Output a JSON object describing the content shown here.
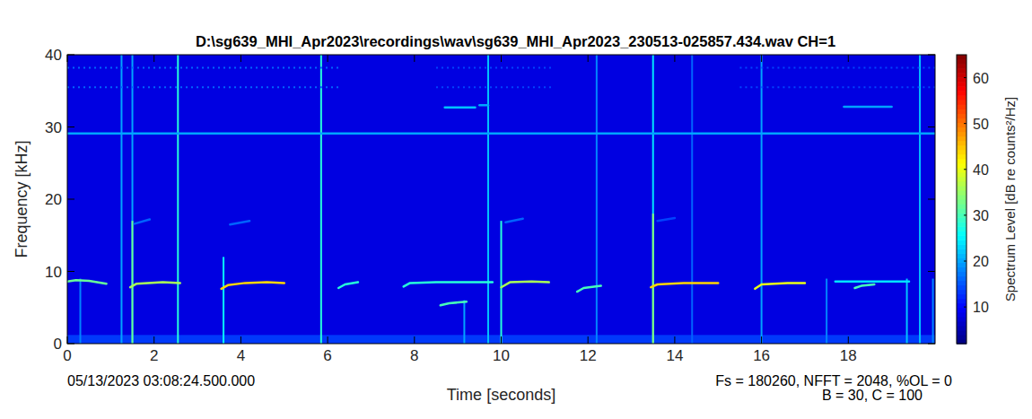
{
  "chart_data": {
    "type": "spectrogram",
    "title": "D:\\sg639_MHI_Apr2023\\recordings\\wav\\sg639_MHI_Apr2023_230513-025857.434.wav CH=1",
    "x_label": "Time [seconds]",
    "y_label": "Frequency [kHz]",
    "start_time": "05/13/2023 03:08:24.500.000",
    "parameters": [
      "Fs = 180260, NFFT = 2048, %OL = 0",
      "B = 30, C = 100"
    ],
    "xlim": [
      0,
      20
    ],
    "xticks": [
      0,
      2,
      4,
      6,
      8,
      10,
      12,
      14,
      16,
      18
    ],
    "ylim": [
      0,
      40
    ],
    "yticks": [
      0,
      10,
      20,
      30,
      40
    ],
    "colorbar_label": "Spectrum Level [dB re counts²/Hz]",
    "colorbar_lim": [
      2,
      65
    ],
    "colorbar_ticks": [
      10,
      20,
      30,
      40,
      50,
      60
    ],
    "background_level": 8,
    "bands": [
      {
        "t": [
          0,
          20
        ],
        "f": [
          0,
          1.2
        ],
        "level": 14
      }
    ],
    "tonals": [
      {
        "t": [
          0,
          20
        ],
        "f": [
          29.1,
          29.1
        ],
        "level": 20
      },
      {
        "t": [
          0,
          6.3
        ],
        "f": [
          38.2,
          38.2
        ],
        "level": 16,
        "line_style": "dotted"
      },
      {
        "t": [
          0,
          6.3
        ],
        "f": [
          35.5,
          35.5
        ],
        "level": 16,
        "line_style": "dotted"
      },
      {
        "t": [
          8.5,
          11.2
        ],
        "f": [
          38.2,
          38.2
        ],
        "level": 14,
        "line_style": "dotted"
      },
      {
        "t": [
          8.5,
          11.2
        ],
        "f": [
          35.5,
          35.5
        ],
        "level": 14,
        "line_style": "dotted"
      },
      {
        "t": [
          15.5,
          20
        ],
        "f": [
          38.2,
          38.2
        ],
        "level": 14,
        "line_style": "dotted"
      },
      {
        "t": [
          15.5,
          20
        ],
        "f": [
          35.5,
          35.5
        ],
        "level": 14,
        "line_style": "dotted"
      },
      {
        "t": [
          0,
          0.2,
          0.5,
          0.9
        ],
        "f": [
          8.6,
          8.8,
          8.7,
          8.3
        ],
        "level": 32
      },
      {
        "t": [
          1.45,
          1.6,
          2.2,
          2.6
        ],
        "f": [
          7.8,
          8.3,
          8.5,
          8.4
        ],
        "level": 36
      },
      {
        "t": [
          3.55,
          3.7,
          4.1,
          4.6,
          5.0
        ],
        "f": [
          7.6,
          8.1,
          8.4,
          8.5,
          8.4
        ],
        "level": 44
      },
      {
        "t": [
          6.25,
          6.4,
          6.7
        ],
        "f": [
          7.7,
          8.2,
          8.5
        ],
        "level": 28
      },
      {
        "t": [
          7.75,
          7.9,
          8.5,
          9.8
        ],
        "f": [
          7.9,
          8.4,
          8.5,
          8.5
        ],
        "level": 28
      },
      {
        "t": [
          8.6,
          8.8,
          9.2
        ],
        "f": [
          5.3,
          5.6,
          5.8
        ],
        "level": 30
      },
      {
        "t": [
          10.0,
          10.2,
          10.7,
          11.1
        ],
        "f": [
          7.8,
          8.5,
          8.6,
          8.5
        ],
        "level": 36
      },
      {
        "t": [
          11.75,
          11.9,
          12.3
        ],
        "f": [
          7.2,
          7.7,
          8.0
        ],
        "level": 30
      },
      {
        "t": [
          13.45,
          13.6,
          14.2,
          15.0
        ],
        "f": [
          7.8,
          8.2,
          8.4,
          8.4
        ],
        "level": 44
      },
      {
        "t": [
          15.85,
          16.0,
          16.6,
          17.0
        ],
        "f": [
          7.6,
          8.2,
          8.4,
          8.4
        ],
        "level": 40
      },
      {
        "t": [
          17.7,
          19.4
        ],
        "f": [
          8.6,
          8.6
        ],
        "level": 24
      },
      {
        "t": [
          18.15,
          18.3,
          18.6
        ],
        "f": [
          7.7,
          8.0,
          8.2
        ],
        "level": 30
      },
      {
        "t": [
          8.7,
          9.4
        ],
        "f": [
          32.7,
          32.7
        ],
        "level": 22
      },
      {
        "t": [
          9.5,
          9.7
        ],
        "f": [
          33.0,
          33.0
        ],
        "level": 20
      },
      {
        "t": [
          17.9,
          19.0
        ],
        "f": [
          32.8,
          32.8
        ],
        "level": 20
      },
      {
        "t": [
          1.55,
          1.9
        ],
        "f": [
          16.6,
          17.2
        ],
        "level": 16
      },
      {
        "t": [
          3.75,
          4.2
        ],
        "f": [
          16.5,
          17.0
        ],
        "level": 16
      },
      {
        "t": [
          10.1,
          10.5
        ],
        "f": [
          16.8,
          17.3
        ],
        "level": 16
      },
      {
        "t": [
          13.6,
          14.0
        ],
        "f": [
          17.0,
          17.4
        ],
        "level": 14
      }
    ],
    "clicks": [
      {
        "t": 0.3,
        "f": [
          0,
          9
        ],
        "level": 18
      },
      {
        "t": 1.25,
        "f": [
          0,
          40
        ],
        "level": 20
      },
      {
        "t": 1.5,
        "f": [
          0,
          40
        ],
        "level": 20
      },
      {
        "t": 1.5,
        "f": [
          0,
          17
        ],
        "level": 32
      },
      {
        "t": 2.55,
        "f": [
          0,
          40
        ],
        "level": 28
      },
      {
        "t": 3.6,
        "f": [
          0,
          12
        ],
        "level": 26
      },
      {
        "t": 5.85,
        "f": [
          0,
          40
        ],
        "level": 28
      },
      {
        "t": 9.15,
        "f": [
          0,
          6
        ],
        "level": 20
      },
      {
        "t": 9.7,
        "f": [
          0,
          40
        ],
        "level": 22
      },
      {
        "t": 10.0,
        "f": [
          0,
          17
        ],
        "level": 28
      },
      {
        "t": 12.2,
        "f": [
          0,
          40
        ],
        "level": 18
      },
      {
        "t": 13.5,
        "f": [
          0,
          40
        ],
        "level": 24
      },
      {
        "t": 13.5,
        "f": [
          0,
          18
        ],
        "level": 34
      },
      {
        "t": 14.4,
        "f": [
          0,
          40
        ],
        "level": 16
      },
      {
        "t": 16.0,
        "f": [
          0,
          40
        ],
        "level": 20
      },
      {
        "t": 17.5,
        "f": [
          0,
          9
        ],
        "level": 18
      },
      {
        "t": 19.35,
        "f": [
          0,
          9
        ],
        "level": 22
      },
      {
        "t": 19.65,
        "f": [
          0,
          40
        ],
        "level": 22
      },
      {
        "t": 19.95,
        "f": [
          0,
          9
        ],
        "level": 18
      }
    ]
  }
}
